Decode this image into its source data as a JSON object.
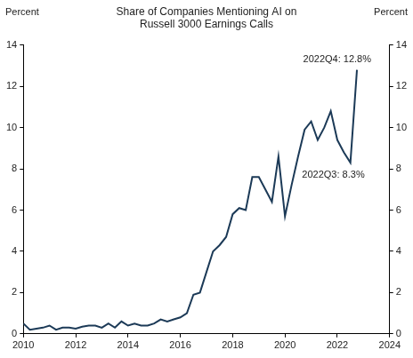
{
  "chart_data": {
    "type": "line",
    "title": [
      "Share of Companies Mentioning AI on",
      "Russell 3000 Earnings Calls"
    ],
    "y_label": "Percent",
    "y2_label": "Percent",
    "x": [
      2010.0,
      2010.25,
      2010.5,
      2010.75,
      2011.0,
      2011.25,
      2011.5,
      2011.75,
      2012.0,
      2012.25,
      2012.5,
      2012.75,
      2013.0,
      2013.25,
      2013.5,
      2013.75,
      2014.0,
      2014.25,
      2014.5,
      2014.75,
      2015.0,
      2015.25,
      2015.5,
      2015.75,
      2016.0,
      2016.25,
      2016.5,
      2016.75,
      2017.0,
      2017.25,
      2017.5,
      2017.75,
      2018.0,
      2018.25,
      2018.5,
      2018.75,
      2019.0,
      2019.25,
      2019.5,
      2019.75,
      2020.0,
      2020.25,
      2020.5,
      2020.75,
      2021.0,
      2021.25,
      2021.5,
      2021.75,
      2022.0,
      2022.25,
      2022.5,
      2022.75
    ],
    "values": [
      0.5,
      0.2,
      0.25,
      0.3,
      0.4,
      0.2,
      0.3,
      0.3,
      0.25,
      0.35,
      0.4,
      0.4,
      0.3,
      0.5,
      0.3,
      0.6,
      0.4,
      0.5,
      0.4,
      0.4,
      0.5,
      0.7,
      0.6,
      0.7,
      0.8,
      1.0,
      1.9,
      2.0,
      3.0,
      4.0,
      4.3,
      4.7,
      5.8,
      6.1,
      6.0,
      7.6,
      7.6,
      7.0,
      6.4,
      8.6,
      5.7,
      7.2,
      8.6,
      9.9,
      10.3,
      9.4,
      10.0,
      10.8,
      9.4,
      8.8,
      8.3,
      12.8
    ],
    "color": "#1c3a57",
    "xlim": [
      2010,
      2024
    ],
    "xticks": [
      2010,
      2012,
      2014,
      2016,
      2018,
      2020,
      2022,
      2024
    ],
    "ylim": [
      0,
      14
    ],
    "yticks": [
      0,
      2,
      4,
      6,
      8,
      10,
      12,
      14
    ],
    "y2lim": [
      0,
      14
    ],
    "y2ticks": [
      0,
      2,
      4,
      6,
      8,
      10,
      12,
      14
    ],
    "grid": false,
    "legend": false,
    "annotations": [
      {
        "text": "2022Q4: 12.8%",
        "x": 2022.75,
        "y": 12.8
      },
      {
        "text": "2022Q3: 8.3%",
        "x": 2022.5,
        "y": 8.3
      }
    ]
  }
}
